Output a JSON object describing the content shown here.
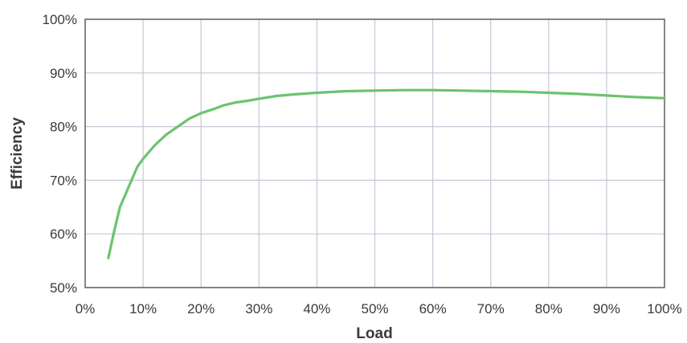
{
  "chart_data": {
    "type": "line",
    "title": "",
    "xlabel": "Load",
    "ylabel": "Efficiency",
    "xlim": [
      0,
      100
    ],
    "ylim": [
      50,
      100
    ],
    "x_ticks": [
      0,
      10,
      20,
      30,
      40,
      50,
      60,
      70,
      80,
      90,
      100
    ],
    "y_ticks": [
      50,
      60,
      70,
      80,
      90,
      100
    ],
    "x_tick_labels": [
      "0%",
      "10%",
      "20%",
      "30%",
      "40%",
      "50%",
      "60%",
      "70%",
      "80%",
      "90%",
      "100%"
    ],
    "y_tick_labels": [
      "50%",
      "60%",
      "70%",
      "80%",
      "90%",
      "100%"
    ],
    "grid": true,
    "legend": "none",
    "line_color": "#6cc36f",
    "series": [
      {
        "x": [
          4,
          5,
          6,
          7,
          8,
          9,
          10,
          12,
          14,
          16,
          18,
          20,
          22,
          24,
          26,
          28,
          30,
          33,
          36,
          40,
          45,
          50,
          55,
          60,
          65,
          70,
          75,
          80,
          85,
          90,
          95,
          100
        ],
        "y": [
          55.5,
          60.5,
          65,
          67.5,
          70,
          72.5,
          74,
          76.5,
          78.5,
          80,
          81.5,
          82.5,
          83.2,
          84,
          84.5,
          84.8,
          85.2,
          85.7,
          86,
          86.3,
          86.6,
          86.7,
          86.8,
          86.8,
          86.7,
          86.6,
          86.5,
          86.3,
          86.1,
          85.8,
          85.5,
          85.3
        ]
      }
    ]
  }
}
